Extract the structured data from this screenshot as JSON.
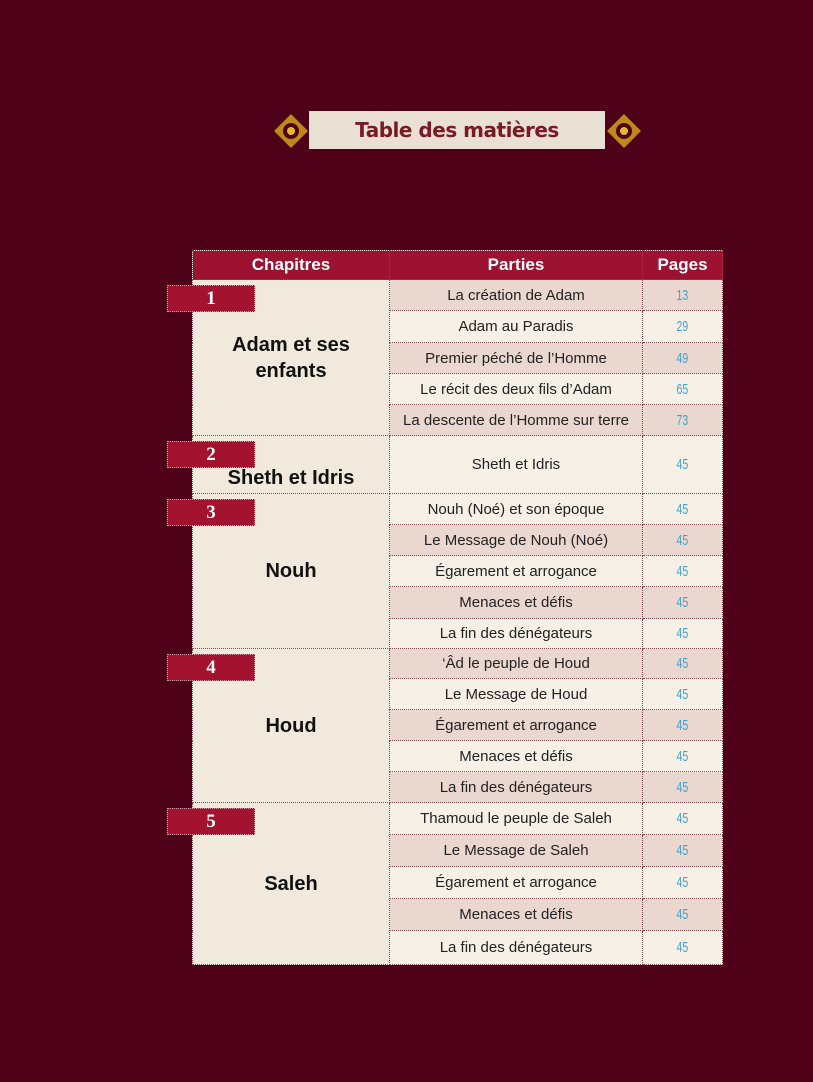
{
  "title": "Table des matières",
  "headers": {
    "chapters": "Chapitres",
    "parts": "Parties",
    "pages": "Pages"
  },
  "colors": {
    "background": "#4e0018",
    "header": "#9c1230",
    "page_numbers": "#3aa3d3",
    "ornament": "#d4a017"
  },
  "chapters": [
    {
      "number": "1",
      "name": "Adam et ses enfants",
      "parts": [
        {
          "title": "La création de Adam",
          "page": "13"
        },
        {
          "title": "Adam au Paradis",
          "page": "29"
        },
        {
          "title": "Premier péché de l’Homme",
          "page": "49"
        },
        {
          "title": "Le récit des deux fils d’Adam",
          "page": "65"
        },
        {
          "title": "La descente de l’Homme sur terre",
          "page": "73"
        }
      ]
    },
    {
      "number": "2",
      "name": "Sheth et Idris",
      "parts": [
        {
          "title": "Sheth et Idris",
          "page": "45"
        }
      ]
    },
    {
      "number": "3",
      "name": "Nouh",
      "parts": [
        {
          "title": "Nouh (Noé) et son époque",
          "page": "45"
        },
        {
          "title": "Le Message de Nouh (Noé)",
          "page": "45"
        },
        {
          "title": "Égarement et arrogance",
          "page": "45"
        },
        {
          "title": "Menaces et défis",
          "page": "45"
        },
        {
          "title": "La fin des dénégateurs",
          "page": "45"
        }
      ]
    },
    {
      "number": "4",
      "name": "Houd",
      "parts": [
        {
          "title": "‘Âd le peuple de Houd",
          "page": "45"
        },
        {
          "title": "Le Message de Houd",
          "page": "45"
        },
        {
          "title": "Égarement et arrogance",
          "page": "45"
        },
        {
          "title": "Menaces et défis",
          "page": "45"
        },
        {
          "title": "La fin des dénégateurs",
          "page": "45"
        }
      ]
    },
    {
      "number": "5",
      "name": "Saleh",
      "parts": [
        {
          "title": "Thamoud le peuple de Saleh",
          "page": "45"
        },
        {
          "title": "Le Message de Saleh",
          "page": "45"
        },
        {
          "title": "Égarement et arrogance",
          "page": "45"
        },
        {
          "title": "Menaces et défis",
          "page": "45"
        },
        {
          "title": "La fin des dénégateurs",
          "page": "45"
        }
      ]
    }
  ]
}
